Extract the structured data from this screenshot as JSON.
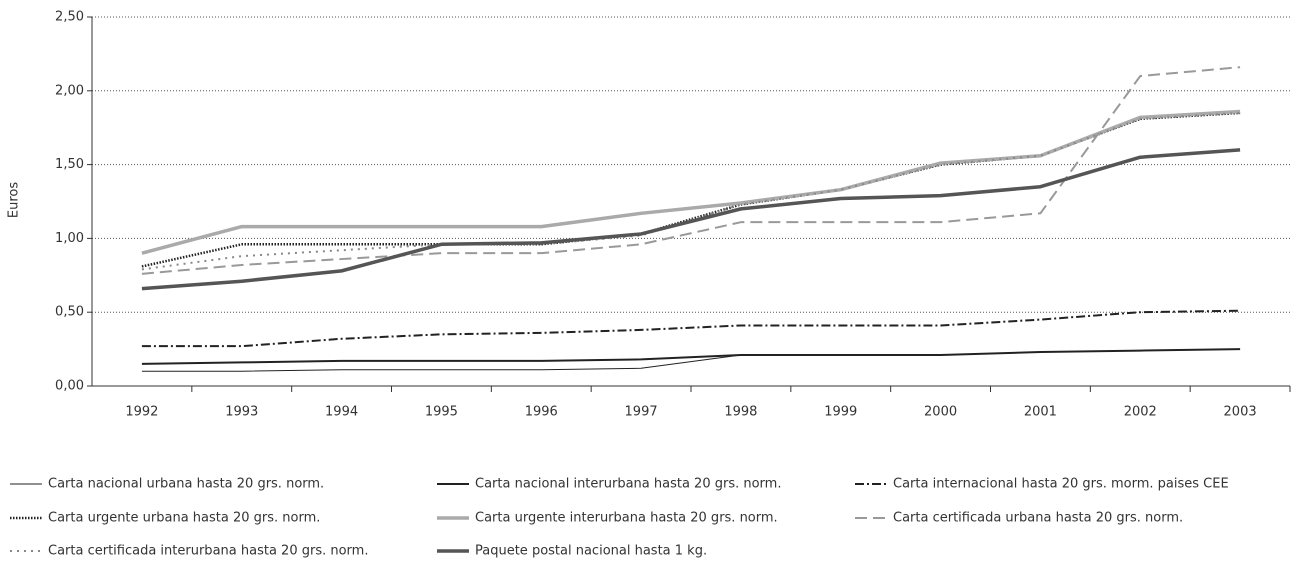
{
  "chart_data": {
    "type": "line",
    "y_label": "Euros",
    "categories": [
      "1992",
      "1993",
      "1994",
      "1995",
      "1996",
      "1997",
      "1998",
      "1999",
      "2000",
      "2001",
      "2002",
      "2003"
    ],
    "ylim": [
      0,
      2.5
    ],
    "yticks": [
      {
        "value": 0,
        "label": "0,00"
      },
      {
        "value": 0.5,
        "label": "0,50"
      },
      {
        "value": 1,
        "label": "1,00"
      },
      {
        "value": 1.5,
        "label": "1,50"
      },
      {
        "value": 2,
        "label": "2,00"
      },
      {
        "value": 2.5,
        "label": "2,50"
      }
    ],
    "grid": true,
    "series": [
      {
        "name": "Carta nacional urbana hasta 20 grs. norm.",
        "color": "#222222",
        "values": [
          0.1,
          0.1,
          0.11,
          0.11,
          0.11,
          0.12,
          0.21,
          0.21,
          0.21,
          0.23,
          0.24,
          0.25
        ]
      },
      {
        "name": "Carta nacional interurbana hasta 20 grs. norm.",
        "color": "#222222",
        "values": [
          0.15,
          0.16,
          0.17,
          0.17,
          0.17,
          0.18,
          0.21,
          0.21,
          0.21,
          0.23,
          0.24,
          0.25
        ]
      },
      {
        "name": "Carta internacional hasta 20 grs. morm. paises CEE",
        "color": "#222222",
        "values": [
          0.27,
          0.27,
          0.32,
          0.35,
          0.36,
          0.38,
          0.41,
          0.41,
          0.41,
          0.45,
          0.5,
          0.51
        ]
      },
      {
        "name": "Carta urgente urbana hasta 20 grs. norm.",
        "color": "#222222",
        "values": [
          0.81,
          0.96,
          0.96,
          0.96,
          0.96,
          1.03,
          1.23,
          1.33,
          1.5,
          1.56,
          1.81,
          1.85
        ]
      },
      {
        "name": "Carta urgente interurbana hasta 20 grs. norm.",
        "color": "#aaaaaa",
        "values": [
          0.9,
          1.08,
          1.08,
          1.08,
          1.08,
          1.17,
          1.24,
          1.33,
          1.51,
          1.56,
          1.82,
          1.86
        ]
      },
      {
        "name": "Carta certificada urbana hasta 20 grs. norm.",
        "color": "#999999",
        "values": [
          0.76,
          0.82,
          0.86,
          0.9,
          0.9,
          0.96,
          1.11,
          1.11,
          1.11,
          1.17,
          2.1,
          2.16
        ]
      },
      {
        "name": "Carta certificada interurbana hasta 20 grs. norm.",
        "color": "#888888",
        "values": [
          0.79,
          0.88,
          0.92,
          0.96,
          0.96,
          1.02,
          1.23,
          1.33,
          1.5,
          1.56,
          1.81,
          1.85
        ]
      },
      {
        "name": "Paquete postal nacional hasta 1 kg.",
        "color": "#555555",
        "values": [
          0.66,
          0.71,
          0.78,
          0.96,
          0.97,
          1.03,
          1.2,
          1.27,
          1.29,
          1.35,
          1.55,
          1.6
        ]
      }
    ]
  }
}
